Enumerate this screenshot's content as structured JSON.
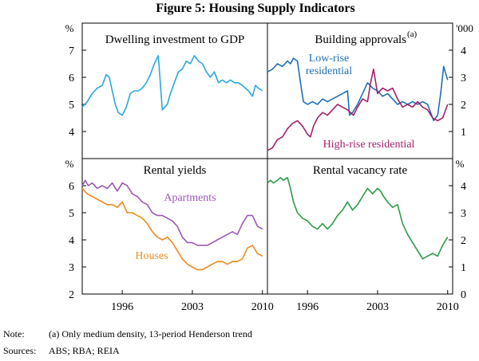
{
  "figure_title": "Figure 5: Housing Supply Indicators",
  "note_label": "Note:",
  "note_text": "(a) Only medium density, 13-period Henderson trend",
  "sources_label": "Sources:",
  "sources_text": "ABS; RBA; REIA",
  "colors": {
    "dwelling": "#29a8e0",
    "lowrise": "#1f6fb5",
    "highrise": "#a4206a",
    "apartments": "#9b59b6",
    "houses": "#f08a1c",
    "vacancy": "#2e9a4a"
  },
  "chart_data": [
    {
      "type": "line",
      "title": "Dwelling investment to GDP",
      "left_unit": "%",
      "x_ticks": [],
      "xlim": [
        1992.0,
        2010.5
      ],
      "ylim": [
        3,
        8
      ],
      "y_ticks": [
        4,
        5,
        6,
        7
      ],
      "series": [
        {
          "name": "Dwelling investment to GDP",
          "color_key": "dwelling",
          "x": [
            1992.0,
            1992.5,
            1993.0,
            1993.5,
            1994.0,
            1994.4,
            1994.7,
            1995.0,
            1995.3,
            1995.6,
            1996.0,
            1996.4,
            1996.8,
            1997.2,
            1997.6,
            1998.0,
            1998.4,
            1998.8,
            1999.2,
            1999.6,
            2000.0,
            2000.25,
            2000.5,
            2000.8,
            2001.2,
            2001.6,
            2002.0,
            2002.4,
            2002.8,
            2003.2,
            2003.6,
            2004.0,
            2004.4,
            2004.8,
            2005.2,
            2005.6,
            2006.0,
            2006.4,
            2006.8,
            2007.2,
            2007.6,
            2008.0,
            2008.3,
            2008.6,
            2009.0,
            2009.3,
            2009.6,
            2010.0
          ],
          "values": [
            4.9,
            5.1,
            5.4,
            5.6,
            5.7,
            6.1,
            6.0,
            5.5,
            5.0,
            4.7,
            4.6,
            4.9,
            5.4,
            5.5,
            5.5,
            5.6,
            5.8,
            6.1,
            6.5,
            6.8,
            4.8,
            4.9,
            5.0,
            5.4,
            5.8,
            6.2,
            6.3,
            6.6,
            6.5,
            6.8,
            6.6,
            6.5,
            6.2,
            6.0,
            6.2,
            5.8,
            5.9,
            5.8,
            5.9,
            5.8,
            5.8,
            5.7,
            5.6,
            5.5,
            5.3,
            5.7,
            5.6,
            5.5
          ]
        }
      ]
    },
    {
      "type": "line",
      "title": "Building approvals",
      "title_note": "(a)",
      "right_unit": "'000",
      "x_ticks": [],
      "xlim": [
        1992.0,
        2010.5
      ],
      "ylim": [
        0,
        5
      ],
      "y_ticks": [
        1,
        2,
        3,
        4
      ],
      "annotations": [
        "Low-rise residential",
        "High-rise residential"
      ],
      "series": [
        {
          "name": "Low-rise residential",
          "color_key": "lowrise",
          "x": [
            1992.0,
            1992.5,
            1993.0,
            1993.5,
            1994.0,
            1994.3,
            1994.6,
            1995.0,
            1995.3,
            1995.6,
            1996.0,
            1996.5,
            1997.0,
            1997.5,
            1998.0,
            1998.5,
            1999.0,
            1999.5,
            2000.0,
            2000.2,
            2000.5,
            2001.0,
            2001.5,
            2002.0,
            2002.5,
            2003.0,
            2003.5,
            2004.0,
            2004.5,
            2005.0,
            2005.5,
            2006.0,
            2006.5,
            2007.0,
            2007.5,
            2008.0,
            2008.3,
            2008.6,
            2009.0,
            2009.3,
            2009.6,
            2010.0
          ],
          "values": [
            3.2,
            3.3,
            3.5,
            3.4,
            3.6,
            3.5,
            3.7,
            3.6,
            2.8,
            2.1,
            2.0,
            2.1,
            2.0,
            2.2,
            2.1,
            2.2,
            2.3,
            2.4,
            2.5,
            1.6,
            1.7,
            2.0,
            2.4,
            2.8,
            2.6,
            2.5,
            2.3,
            2.4,
            2.2,
            2.0,
            2.1,
            2.0,
            2.1,
            2.0,
            2.1,
            2.0,
            1.7,
            1.4,
            1.6,
            2.4,
            3.4,
            2.9
          ]
        },
        {
          "name": "High-rise residential",
          "color_key": "highrise",
          "x": [
            1992.0,
            1992.5,
            1993.0,
            1993.5,
            1994.0,
            1994.5,
            1995.0,
            1995.5,
            1996.0,
            1996.3,
            1996.6,
            1997.0,
            1997.5,
            1998.0,
            1998.5,
            1999.0,
            1999.5,
            2000.0,
            2000.3,
            2000.6,
            2001.0,
            2001.5,
            2002.0,
            2002.3,
            2002.6,
            2003.0,
            2003.5,
            2004.0,
            2004.5,
            2005.0,
            2005.5,
            2006.0,
            2006.5,
            2007.0,
            2007.5,
            2008.0,
            2008.5,
            2009.0,
            2009.5,
            2010.0
          ],
          "values": [
            0.3,
            0.4,
            0.7,
            0.8,
            1.1,
            1.3,
            1.4,
            1.2,
            0.9,
            0.8,
            1.2,
            1.5,
            1.7,
            1.6,
            1.8,
            2.0,
            1.9,
            1.8,
            1.7,
            1.6,
            1.9,
            2.2,
            2.1,
            2.8,
            3.3,
            2.4,
            2.6,
            2.5,
            2.6,
            2.2,
            1.9,
            2.0,
            1.9,
            2.1,
            1.9,
            1.8,
            1.5,
            1.4,
            1.5,
            2.0
          ]
        }
      ]
    },
    {
      "type": "line",
      "title": "Rental yields",
      "left_unit": "%",
      "x_ticks": [
        1996,
        2003,
        2010
      ],
      "x_tick_labels": [
        "1996",
        "2003",
        "2010"
      ],
      "xlim": [
        1992.0,
        2010.5
      ],
      "ylim": [
        2,
        7
      ],
      "y_ticks": [
        2,
        3,
        4,
        5,
        6
      ],
      "annotations": [
        "Apartments",
        "Houses"
      ],
      "series": [
        {
          "name": "Apartments",
          "color_key": "apartments",
          "x": [
            1992.0,
            1992.3,
            1992.6,
            1993.0,
            1993.5,
            1994.0,
            1994.5,
            1995.0,
            1995.5,
            1996.0,
            1996.5,
            1997.0,
            1997.5,
            1998.0,
            1998.5,
            1999.0,
            1999.5,
            2000.0,
            2000.5,
            2001.0,
            2001.5,
            2002.0,
            2002.5,
            2003.0,
            2003.5,
            2004.0,
            2004.5,
            2005.0,
            2005.5,
            2006.0,
            2006.5,
            2007.0,
            2007.5,
            2008.0,
            2008.5,
            2009.0,
            2009.5,
            2010.0
          ],
          "values": [
            6.0,
            6.2,
            6.0,
            6.1,
            5.9,
            6.0,
            5.9,
            6.1,
            5.8,
            6.1,
            6.0,
            5.7,
            5.6,
            5.4,
            5.3,
            5.0,
            4.9,
            4.9,
            4.8,
            4.7,
            4.5,
            4.1,
            3.9,
            3.9,
            3.8,
            3.8,
            3.8,
            3.9,
            4.0,
            4.1,
            4.2,
            4.3,
            4.2,
            4.6,
            4.9,
            4.9,
            4.5,
            4.4
          ]
        },
        {
          "name": "Houses",
          "color_key": "houses",
          "x": [
            1992.0,
            1992.5,
            1993.0,
            1993.5,
            1994.0,
            1994.5,
            1995.0,
            1995.5,
            1996.0,
            1996.5,
            1997.0,
            1997.5,
            1998.0,
            1998.5,
            1999.0,
            1999.5,
            2000.0,
            2000.5,
            2001.0,
            2001.5,
            2002.0,
            2002.5,
            2003.0,
            2003.5,
            2004.0,
            2004.5,
            2005.0,
            2005.5,
            2006.0,
            2006.5,
            2007.0,
            2007.5,
            2008.0,
            2008.5,
            2009.0,
            2009.5,
            2010.0
          ],
          "values": [
            5.9,
            5.7,
            5.6,
            5.5,
            5.4,
            5.3,
            5.3,
            5.2,
            5.4,
            5.0,
            5.0,
            4.9,
            4.8,
            4.6,
            4.3,
            4.1,
            4.0,
            4.1,
            3.9,
            3.6,
            3.3,
            3.1,
            3.0,
            2.9,
            2.9,
            3.0,
            3.1,
            3.2,
            3.2,
            3.1,
            3.2,
            3.2,
            3.3,
            3.7,
            3.8,
            3.5,
            3.4
          ]
        }
      ]
    },
    {
      "type": "line",
      "title": "Rental vacancy rate",
      "right_unit": "%",
      "x_ticks": [
        1996,
        2003,
        2010
      ],
      "x_tick_labels": [
        "1996",
        "2003",
        "2010"
      ],
      "xlim": [
        1992.0,
        2010.5
      ],
      "ylim": [
        0,
        5
      ],
      "y_ticks": [
        0,
        1,
        2,
        3,
        4
      ],
      "series": [
        {
          "name": "Rental vacancy rate",
          "color_key": "vacancy",
          "x": [
            1992.0,
            1992.3,
            1992.6,
            1993.0,
            1993.3,
            1993.6,
            1994.0,
            1994.3,
            1994.6,
            1995.0,
            1995.5,
            1996.0,
            1996.5,
            1997.0,
            1997.5,
            1998.0,
            1998.5,
            1999.0,
            1999.5,
            2000.0,
            2000.5,
            2001.0,
            2001.5,
            2002.0,
            2002.5,
            2003.0,
            2003.3,
            2003.6,
            2004.0,
            2004.5,
            2005.0,
            2005.5,
            2006.0,
            2006.5,
            2007.0,
            2007.5,
            2008.0,
            2008.5,
            2009.0,
            2009.5,
            2010.0
          ],
          "values": [
            4.1,
            4.2,
            4.1,
            4.2,
            4.3,
            4.2,
            4.3,
            3.9,
            3.4,
            3.0,
            2.8,
            2.7,
            2.5,
            2.4,
            2.6,
            2.4,
            2.6,
            2.9,
            3.1,
            3.4,
            3.1,
            3.3,
            3.6,
            3.9,
            3.7,
            3.9,
            3.8,
            3.6,
            3.4,
            3.2,
            3.3,
            2.6,
            2.2,
            1.9,
            1.6,
            1.3,
            1.4,
            1.5,
            1.4,
            1.8,
            2.1
          ]
        }
      ]
    }
  ]
}
